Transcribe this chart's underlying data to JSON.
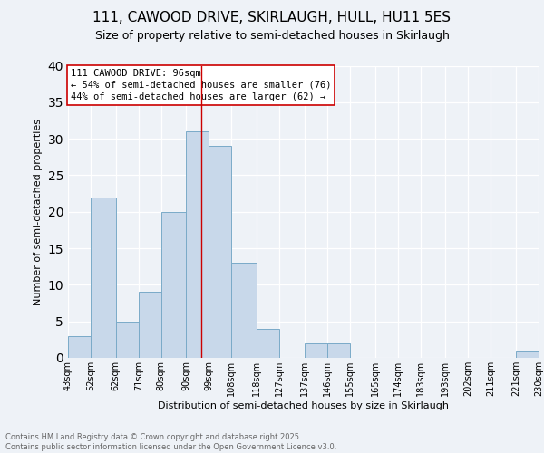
{
  "title_line1": "111, CAWOOD DRIVE, SKIRLAUGH, HULL, HU11 5ES",
  "title_line2": "Size of property relative to semi-detached houses in Skirlaugh",
  "xlabel": "Distribution of semi-detached houses by size in Skirlaugh",
  "ylabel": "Number of semi-detached properties",
  "bins": [
    43,
    52,
    62,
    71,
    80,
    90,
    99,
    108,
    118,
    127,
    137,
    146,
    155,
    165,
    174,
    183,
    193,
    202,
    211,
    221,
    230
  ],
  "counts": [
    3,
    22,
    5,
    9,
    20,
    31,
    29,
    13,
    4,
    0,
    2,
    2,
    0,
    0,
    0,
    0,
    0,
    0,
    0,
    1
  ],
  "bar_color": "#c8d8ea",
  "bar_edge_color": "#7aaac8",
  "property_size": 96,
  "annotation_text": "111 CAWOOD DRIVE: 96sqm\n← 54% of semi-detached houses are smaller (76)\n44% of semi-detached houses are larger (62) →",
  "vline_color": "#cc0000",
  "footer_text": "Contains HM Land Registry data © Crown copyright and database right 2025.\nContains public sector information licensed under the Open Government Licence v3.0.",
  "tick_labels": [
    "43sqm",
    "52sqm",
    "62sqm",
    "71sqm",
    "80sqm",
    "90sqm",
    "99sqm",
    "108sqm",
    "118sqm",
    "127sqm",
    "137sqm",
    "146sqm",
    "155sqm",
    "165sqm",
    "174sqm",
    "183sqm",
    "193sqm",
    "202sqm",
    "211sqm",
    "221sqm",
    "230sqm"
  ],
  "ylim": [
    0,
    40
  ],
  "yticks": [
    0,
    5,
    10,
    15,
    20,
    25,
    30,
    35,
    40
  ],
  "background_color": "#eef2f7",
  "grid_color": "#ffffff",
  "title_fontsize": 11,
  "subtitle_fontsize": 9,
  "ylabel_fontsize": 8,
  "xlabel_fontsize": 8,
  "tick_fontsize": 7,
  "annotation_fontsize": 7.5,
  "footer_fontsize": 6
}
